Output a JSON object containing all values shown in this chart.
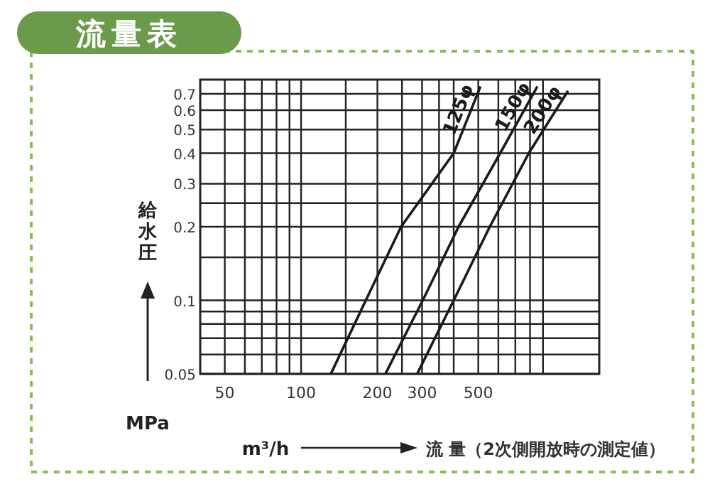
{
  "chart_data": {
    "type": "line",
    "title": "流量表",
    "xlabel": "流 量（2次側開放時の測定値）",
    "ylabel": "給水圧",
    "annotations": [
      "MPa",
      "m³/h"
    ],
    "log": "xy",
    "xlim": [
      40,
      1500
    ],
    "ylim": [
      0.05,
      0.8
    ],
    "xticks": [
      50,
      {
        "value": 60,
        "label": null
      },
      {
        "value": 70,
        "label": null
      },
      {
        "value": 80,
        "label": null
      },
      {
        "value": 90,
        "label": null
      },
      100,
      {
        "value": 150,
        "label": null
      },
      200,
      {
        "value": 250,
        "label": null
      },
      300,
      {
        "value": 350,
        "label": null
      },
      {
        "value": 400,
        "label": null
      },
      500,
      {
        "value": 600,
        "label": null
      },
      {
        "value": 700,
        "label": null
      },
      {
        "value": 800,
        "label": null
      },
      {
        "value": 900,
        "label": null
      }
    ],
    "yticks": [
      0.05,
      {
        "value": 0.06,
        "label": null
      },
      {
        "value": 0.07,
        "label": null
      },
      {
        "value": 0.08,
        "label": null
      },
      {
        "value": 0.09,
        "label": null
      },
      0.1,
      {
        "value": 0.15,
        "label": null
      },
      0.2,
      {
        "value": 0.25,
        "label": null
      },
      0.3,
      0.4,
      0.5,
      0.6,
      0.7
    ],
    "grid": true,
    "line_style": "solid",
    "marker": "none",
    "series": [
      {
        "name": "125φ",
        "color": "#1a1a1a",
        "x": [
          131,
          180,
          248,
          400,
          510
        ],
        "values": [
          0.05,
          0.1,
          0.2,
          0.4,
          0.75
        ]
      },
      {
        "name": "150φ",
        "color": "#1a1a1a",
        "x": [
          215,
          302,
          418,
          610,
          855
        ],
        "values": [
          0.05,
          0.1,
          0.2,
          0.4,
          0.75
        ]
      },
      {
        "name": "200φ",
        "color": "#1a1a1a",
        "x": [
          287,
          400,
          555,
          791,
          1130
        ],
        "values": [
          0.05,
          0.1,
          0.2,
          0.4,
          0.72
        ]
      }
    ]
  }
}
